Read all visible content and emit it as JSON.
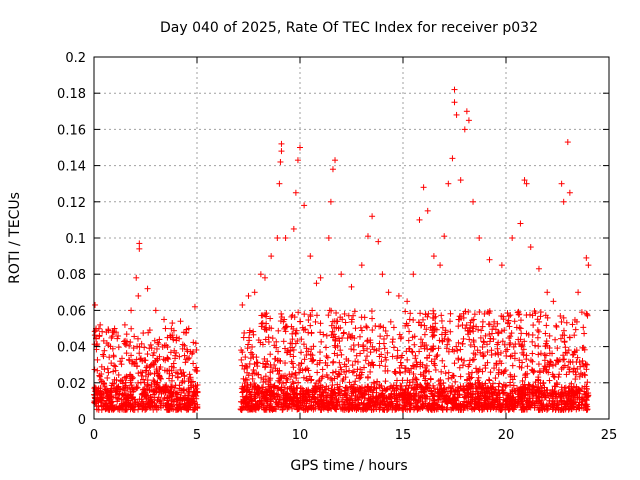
{
  "chart_data": {
    "type": "scatter",
    "title": "Day 040 of 2025, Rate Of TEC Index for receiver p032",
    "xlabel": "GPS time / hours",
    "ylabel": "ROTI / TECUs",
    "xlim": [
      0,
      25
    ],
    "ylim": [
      0,
      0.2
    ],
    "xticks": [
      0,
      5,
      10,
      15,
      20,
      25
    ],
    "yticks": [
      0,
      0.02,
      0.04,
      0.06,
      0.08,
      0.1,
      0.12,
      0.14,
      0.16,
      0.18,
      0.2
    ],
    "grid": true,
    "marker": "plus",
    "color": "#ff0000",
    "data_gap": [
      5.05,
      7.1
    ],
    "series": [
      {
        "points": [
          [
            0.05,
            0.063
          ],
          [
            0.1,
            0.05
          ],
          [
            0.3,
            0.052
          ],
          [
            0.6,
            0.048
          ],
          [
            1.0,
            0.05
          ],
          [
            1.5,
            0.052
          ],
          [
            1.8,
            0.06
          ],
          [
            2.05,
            0.078
          ],
          [
            2.15,
            0.068
          ],
          [
            2.2,
            0.097
          ],
          [
            2.2,
            0.094
          ],
          [
            2.6,
            0.072
          ],
          [
            3.0,
            0.06
          ],
          [
            3.4,
            0.055
          ],
          [
            3.8,
            0.053
          ],
          [
            4.2,
            0.054
          ],
          [
            4.6,
            0.05
          ],
          [
            4.9,
            0.062
          ],
          [
            7.2,
            0.063
          ],
          [
            7.5,
            0.068
          ],
          [
            7.8,
            0.07
          ],
          [
            8.1,
            0.08
          ],
          [
            8.3,
            0.078
          ],
          [
            8.6,
            0.09
          ],
          [
            8.9,
            0.1
          ],
          [
            9.0,
            0.13
          ],
          [
            9.05,
            0.142
          ],
          [
            9.1,
            0.148
          ],
          [
            9.1,
            0.152
          ],
          [
            9.3,
            0.1
          ],
          [
            9.7,
            0.105
          ],
          [
            9.8,
            0.125
          ],
          [
            9.9,
            0.143
          ],
          [
            10.0,
            0.15
          ],
          [
            10.2,
            0.118
          ],
          [
            10.5,
            0.09
          ],
          [
            10.8,
            0.075
          ],
          [
            11.0,
            0.078
          ],
          [
            11.4,
            0.1
          ],
          [
            11.5,
            0.12
          ],
          [
            11.6,
            0.138
          ],
          [
            11.7,
            0.143
          ],
          [
            12.0,
            0.08
          ],
          [
            12.5,
            0.073
          ],
          [
            13.0,
            0.085
          ],
          [
            13.3,
            0.101
          ],
          [
            13.5,
            0.112
          ],
          [
            13.8,
            0.098
          ],
          [
            14.0,
            0.08
          ],
          [
            14.3,
            0.07
          ],
          [
            14.8,
            0.068
          ],
          [
            15.2,
            0.065
          ],
          [
            15.5,
            0.08
          ],
          [
            15.8,
            0.11
          ],
          [
            16.0,
            0.128
          ],
          [
            16.2,
            0.115
          ],
          [
            16.5,
            0.09
          ],
          [
            16.8,
            0.085
          ],
          [
            17.0,
            0.101
          ],
          [
            17.2,
            0.13
          ],
          [
            17.4,
            0.144
          ],
          [
            17.5,
            0.175
          ],
          [
            17.5,
            0.182
          ],
          [
            17.6,
            0.168
          ],
          [
            17.8,
            0.132
          ],
          [
            18.0,
            0.16
          ],
          [
            18.1,
            0.17
          ],
          [
            18.2,
            0.165
          ],
          [
            18.4,
            0.12
          ],
          [
            18.7,
            0.1
          ],
          [
            19.2,
            0.088
          ],
          [
            19.8,
            0.085
          ],
          [
            20.3,
            0.1
          ],
          [
            20.7,
            0.108
          ],
          [
            20.9,
            0.132
          ],
          [
            21.0,
            0.13
          ],
          [
            21.2,
            0.095
          ],
          [
            21.6,
            0.083
          ],
          [
            22.0,
            0.07
          ],
          [
            22.3,
            0.065
          ],
          [
            22.7,
            0.13
          ],
          [
            22.8,
            0.12
          ],
          [
            23.0,
            0.153
          ],
          [
            23.1,
            0.125
          ],
          [
            23.5,
            0.07
          ],
          [
            23.9,
            0.089
          ],
          [
            24.0,
            0.085
          ]
        ]
      }
    ]
  }
}
